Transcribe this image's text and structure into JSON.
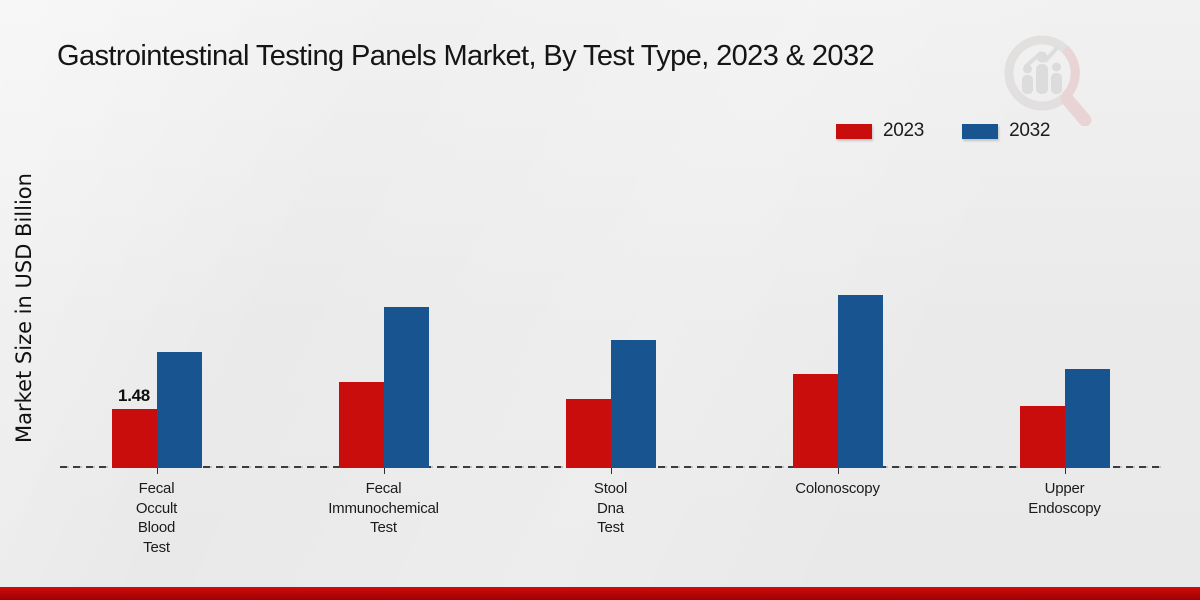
{
  "chart_data": {
    "type": "bar",
    "title": "Gastrointestinal Testing Panels Market, By Test Type, 2023 & 2032",
    "y_axis_label": "Market Size in USD Billion",
    "categories": [
      "Fecal Occult Blood Test",
      "Fecal Immunochemical Test",
      "Stool Dna Test",
      "Colonoscopy",
      "Upper Endoscopy"
    ],
    "category_label_lines": [
      [
        "Fecal",
        "Occult",
        "Blood",
        "Test"
      ],
      [
        "Fecal",
        "Immunochemical",
        "Test"
      ],
      [
        "Stool",
        "Dna",
        "Test"
      ],
      [
        "Colonoscopy"
      ],
      [
        "Upper",
        "Endoscopy"
      ]
    ],
    "series": [
      {
        "name": "2023",
        "color": "#c90d0d",
        "values": [
          1.48,
          2.16,
          1.73,
          2.36,
          1.56
        ]
      },
      {
        "name": "2032",
        "color": "#18548f",
        "values": [
          2.91,
          4.04,
          3.21,
          4.34,
          2.48
        ]
      }
    ],
    "bar_value_labels": [
      {
        "series_index": 0,
        "category_index": 0,
        "text": "1.48"
      }
    ],
    "ylim": [
      0,
      5
    ],
    "grid": false,
    "legend_position": "top-right",
    "baseline_style": "dashed"
  },
  "branding": {
    "watermark_icon": "magnifier-bar-chart-logo",
    "band_color": "#b30505"
  }
}
